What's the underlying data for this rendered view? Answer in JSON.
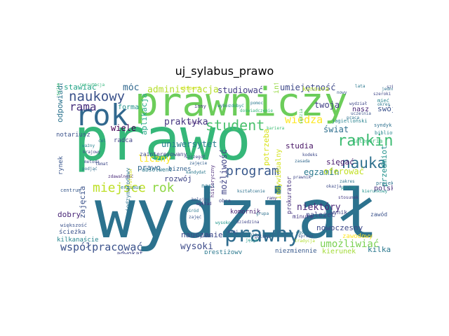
{
  "title": "uj_sylabus_prawo",
  "words": [
    {
      "t": "prawo",
      "c": "#35b779"
    },
    {
      "t": "prawniczy",
      "c": "#6ccd5a"
    },
    {
      "t": "wydział",
      "c": "#2c728e"
    },
    {
      "t": "rok",
      "c": "#31688e"
    },
    {
      "t": "prawny",
      "c": "#2f6c8e"
    },
    {
      "t": "naukowy",
      "c": "#3b528b"
    },
    {
      "t": "ranking",
      "c": "#3fbc73"
    },
    {
      "t": "nauka",
      "c": "#2d708e"
    },
    {
      "t": "student",
      "c": "#4ac16d"
    },
    {
      "t": "program",
      "c": "#38588c"
    },
    {
      "t": "miejsce",
      "c": "#bddf26"
    },
    {
      "t": "rok",
      "c": "#8fd744"
    },
    {
      "t": "rama",
      "c": "#472f7d"
    },
    {
      "t": "praktyka",
      "c": "#453581"
    },
    {
      "t": "administracja",
      "c": "#b5de2b"
    },
    {
      "t": "studiować",
      "c": "#433e85"
    },
    {
      "t": "umiejętność",
      "c": "#3e4989"
    },
    {
      "t": "wiedza",
      "c": "#fde725"
    },
    {
      "t": "umożliwiać",
      "c": "#7ad151"
    },
    {
      "t": "współpracować",
      "c": "#3b528b"
    },
    {
      "t": "wysoki",
      "c": "#3e4c8a"
    },
    {
      "t": "niektóry",
      "c": "#482576"
    },
    {
      "t": "egzamin",
      "c": "#2a788e"
    },
    {
      "t": "nowoczesny",
      "c": "#3e4989"
    },
    {
      "t": "świat",
      "c": "#2e6f8e"
    },
    {
      "t": "twoja",
      "c": "#424086"
    },
    {
      "t": "móc",
      "c": "#31688e"
    },
    {
      "t": "wiele",
      "c": "#440154"
    },
    {
      "t": "uniwersytet",
      "c": "#287d8e"
    },
    {
      "t": "aplikacja",
      "c": "#22a785"
    },
    {
      "t": "liczny",
      "c": "#fde725"
    },
    {
      "t": "rozwój",
      "c": "#404688"
    },
    {
      "t": "oferować",
      "c": "#c2df23"
    },
    {
      "t": "możliwość",
      "c": "#414487"
    },
    {
      "t": "potrzeba",
      "c": "#d8e219"
    },
    {
      "t": "nauczanie",
      "c": "#3e4989"
    },
    {
      "t": "przedmiot",
      "c": "#21918c"
    },
    {
      "t": "kilka",
      "c": "#2a788e"
    },
    {
      "t": "polski",
      "c": "#472d7b"
    },
    {
      "t": "sięgać",
      "c": "#48186a"
    },
    {
      "t": "swój",
      "c": "#3b528b"
    },
    {
      "t": "studia",
      "c": "#471365"
    },
    {
      "t": "należeć",
      "c": "#3f4889"
    },
    {
      "t": "odpowiadać",
      "c": "#2c738e"
    },
    {
      "t": "stawiać",
      "c": "#20a386"
    },
    {
      "t": "forma",
      "c": "#21918c"
    },
    {
      "t": "zajęcia",
      "c": "#3b528b"
    },
    {
      "t": "dobry",
      "c": "#482677"
    },
    {
      "t": "prawo",
      "c": "#31688e"
    },
    {
      "t": "biznes",
      "c": "#34618d"
    },
    {
      "t": "absolwent",
      "c": "#2a788e"
    },
    {
      "t": "komornik",
      "c": "#482475"
    },
    {
      "t": "prokurator",
      "c": "#46337f"
    },
    {
      "t": "minuta",
      "c": "#453882"
    },
    {
      "t": "wynik",
      "c": "#414487"
    },
    {
      "t": "kierunek",
      "c": "#a2da37"
    },
    {
      "t": "niezmiennie",
      "c": "#38598c"
    },
    {
      "t": "prestiżowy",
      "c": "#2a788e"
    },
    {
      "t": "adwokat",
      "c": "#404688"
    },
    {
      "t": "rynek",
      "c": "#39568c"
    },
    {
      "t": "ścieżka",
      "c": "#3b528b"
    },
    {
      "t": "kilkanaście",
      "c": "#25858e"
    },
    {
      "t": "nasz",
      "c": "#482576"
    },
    {
      "t": "informacja",
      "c": "#95d840"
    },
    {
      "t": "notariusz",
      "c": "#3b528b"
    },
    {
      "t": "zainteresowany",
      "c": "#3e4989"
    },
    {
      "t": "zawód",
      "c": "#3b528b"
    },
    {
      "t": "syndyk",
      "c": "#2d708e"
    },
    {
      "t": "biblioteka",
      "c": "#25848e"
    },
    {
      "t": "indywidualny",
      "c": "#d2e21b"
    },
    {
      "t": "międzynarodowy",
      "c": "#2c728e"
    },
    {
      "t": "radca",
      "c": "#414487"
    },
    {
      "t": "kategoria",
      "c": "#3aba76"
    },
    {
      "t": "projekt",
      "c": "#2c728e"
    },
    {
      "t": "inny",
      "c": "#443983"
    },
    {
      "t": "konsura",
      "c": "#b8de29"
    },
    {
      "t": "jagielloński",
      "c": "#26828e"
    },
    {
      "t": "mieć",
      "c": "#24868e"
    },
    {
      "t": "zawodowy",
      "c": "#fde725"
    },
    {
      "t": "szeroki",
      "c": "#3f4788"
    },
    {
      "t": "nasi",
      "c": "#2a768e"
    },
    {
      "t": "obca",
      "c": "#3e4a89"
    },
    {
      "t": "ekspert",
      "c": "#d5e21a"
    },
    {
      "t": "kształcenie",
      "c": "#2d718e"
    },
    {
      "t": "wybór",
      "c": "#2d708e"
    },
    {
      "t": "zdobyć",
      "c": "#20928c"
    },
    {
      "t": "doświadczenie",
      "c": "#32b67a"
    },
    {
      "t": "kariera",
      "c": "#3dbc74"
    },
    {
      "t": "oraz",
      "c": "#481f70"
    },
    {
      "t": "wśród",
      "c": "#2a788e"
    },
    {
      "t": "zajęć",
      "c": "#39558c"
    },
    {
      "t": "wykład",
      "c": "#453781"
    },
    {
      "t": "kraj",
      "c": "#3e4989"
    },
    {
      "t": "ćwiczenie",
      "c": "#2e6e8e"
    },
    {
      "t": "język",
      "c": "#1f968b"
    },
    {
      "t": "polska",
      "c": "#3b518b"
    },
    {
      "t": "historyczny",
      "c": "#482878"
    },
    {
      "t": "szczegół",
      "c": "#3f4889"
    },
    {
      "t": "zajęcie",
      "c": "#35608d"
    },
    {
      "t": "kandydat",
      "c": "#2a788e"
    },
    {
      "t": "kolejny",
      "c": "#3c4f8a"
    },
    {
      "t": "tradycja",
      "c": "#b0dd2f"
    },
    {
      "t": "ogólny",
      "c": "#2c728e"
    },
    {
      "t": "prawnik",
      "c": "#3f4788"
    },
    {
      "t": "sprawa",
      "c": "#39558c"
    },
    {
      "t": "centrum",
      "c": "#38598c"
    },
    {
      "t": "większość",
      "c": "#3b528b"
    },
    {
      "t": "podjąć",
      "c": "#2e6e8e"
    },
    {
      "t": "zdawalność",
      "c": "#482878"
    },
    {
      "t": "sylwetka",
      "c": "#3aba76"
    },
    {
      "t": "rekrutacja",
      "c": "#31b57b"
    },
    {
      "t": "erasmus",
      "c": "#2a788e"
    },
    {
      "t": "profesor",
      "c": "#d8e219"
    },
    {
      "t": "krajowy",
      "c": "#3e4a89"
    },
    {
      "t": "cel",
      "c": "#2d708e"
    },
    {
      "t": "ważny",
      "c": "#25838e"
    },
    {
      "t": "metoda",
      "c": "#3b528b"
    },
    {
      "t": "temat",
      "c": "#3e4989"
    },
    {
      "t": "okres",
      "c": "#2a788e"
    },
    {
      "t": "szkoła",
      "c": "#404688"
    },
    {
      "t": "jednostka",
      "c": "#2c728e"
    },
    {
      "t": "wydział",
      "c": "#3f4788"
    },
    {
      "t": "kierunkowy",
      "c": "#21918c"
    },
    {
      "t": "praca",
      "c": "#2d708e"
    },
    {
      "t": "uczelnia",
      "c": "#3b528b"
    },
    {
      "t": "sędzia",
      "c": "#4ac16d"
    },
    {
      "t": "stosunek",
      "c": "#443983"
    },
    {
      "t": "zasada",
      "c": "#31688e"
    },
    {
      "t": "nowy",
      "c": "#38598c"
    },
    {
      "t": "lata",
      "c": "#2a788e"
    },
    {
      "t": "okazja",
      "c": "#3e4c8a"
    },
    {
      "t": "zakres",
      "c": "#2c728e"
    },
    {
      "t": "poziom",
      "c": "#21918c"
    },
    {
      "t": "kodeks",
      "c": "#3e4989"
    },
    {
      "t": "ramy",
      "c": "#453882"
    },
    {
      "t": "grupa",
      "c": "#2d708e"
    },
    {
      "t": "system",
      "c": "#3b528b"
    },
    {
      "t": "wysoko",
      "c": "#1f968b"
    },
    {
      "t": "dziedzina",
      "c": "#404688"
    },
    {
      "t": "pomoc",
      "c": "#2a788e"
    }
  ]
}
